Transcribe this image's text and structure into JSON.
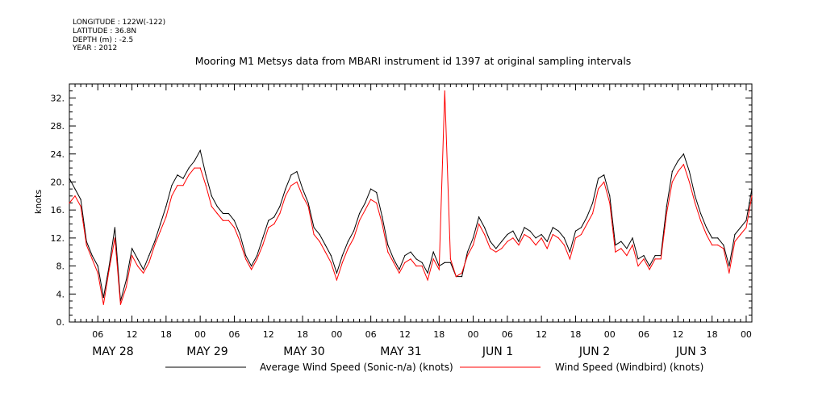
{
  "header": {
    "meta_lines": [
      "LONGITUDE : 122W(-122)",
      "LATITUDE : 36.8N",
      "DEPTH (m) : -2.5",
      "YEAR : 2012"
    ]
  },
  "chart_data": {
    "type": "line",
    "title": "Mooring M1 Metsys data from MBARI instrument id 1397 at original sampling intervals",
    "ylabel": "knots",
    "xlabel": "",
    "x_unit": "hours since 2012-05-28 00:00",
    "xlim": [
      1,
      121
    ],
    "ylim": [
      0,
      34
    ],
    "y_ticks": [
      0,
      4,
      8,
      12,
      16,
      20,
      24,
      28,
      32
    ],
    "y_tick_labels": [
      "0.",
      "4.",
      "8.",
      "12.",
      "16.",
      "20.",
      "24.",
      "28.",
      "32."
    ],
    "x_ticks": [
      6,
      12,
      18,
      24,
      30,
      36,
      42,
      48,
      54,
      60,
      66,
      72,
      78,
      84,
      90,
      96,
      102,
      108,
      114,
      120
    ],
    "x_tick_labels": [
      "06",
      "12",
      "18",
      "00",
      "06",
      "12",
      "18",
      "00",
      "06",
      "12",
      "18",
      "00",
      "06",
      "12",
      "18",
      "00",
      "06",
      "12",
      "18",
      "00"
    ],
    "day_labels": [
      {
        "x": 6,
        "label": "MAY 28"
      },
      {
        "x": 30,
        "label": "MAY 29"
      },
      {
        "x": 54,
        "label": "MAY 30"
      },
      {
        "x": 78,
        "label": "MAY 31"
      },
      {
        "x": 102,
        "label": "JUN  1"
      },
      {
        "x": 126,
        "label": "JUN  2"
      },
      {
        "x": 150,
        "label": "JUN  3"
      }
    ],
    "grid": false,
    "legend": "bottom",
    "series": [
      {
        "name": "Average Wind Speed (Sonic-n/a) (knots)",
        "color": "#000000",
        "x": [
          1,
          2,
          3,
          4,
          5,
          6,
          7,
          8,
          9,
          10,
          11,
          12,
          13,
          14,
          15,
          16,
          17,
          18,
          19,
          20,
          21,
          22,
          23,
          24,
          25,
          26,
          27,
          28,
          29,
          30,
          31,
          32,
          33,
          34,
          35,
          36,
          37,
          38,
          39,
          40,
          41,
          42,
          43,
          44,
          45,
          46,
          47,
          48,
          49,
          50,
          51,
          52,
          53,
          54,
          55,
          56,
          57,
          58,
          59,
          60,
          61,
          62,
          63,
          64,
          65,
          66,
          67,
          68,
          69,
          70,
          71,
          72,
          73,
          74,
          75,
          76,
          77,
          78,
          79,
          80,
          81,
          82,
          83,
          84,
          85,
          86,
          87,
          88,
          89,
          90,
          91,
          92,
          93,
          94,
          95,
          96,
          97,
          98,
          99,
          100,
          101,
          102,
          103,
          104,
          105,
          106,
          107,
          108,
          109,
          110,
          111,
          112,
          113,
          114,
          115,
          116,
          117,
          118,
          119,
          120,
          121
        ],
        "values": [
          20.5,
          19.0,
          17.5,
          11.5,
          9.5,
          8.0,
          3.5,
          8.0,
          13.5,
          3.0,
          6.0,
          10.5,
          9.0,
          7.5,
          9.5,
          11.5,
          14.0,
          16.5,
          19.5,
          21.0,
          20.5,
          22.0,
          23.0,
          24.5,
          21.0,
          18.0,
          16.5,
          15.5,
          15.5,
          14.5,
          12.5,
          9.5,
          8.0,
          9.5,
          12.0,
          14.5,
          15.0,
          16.5,
          19.0,
          21.0,
          21.5,
          19.0,
          17.0,
          13.5,
          12.5,
          11.0,
          9.5,
          7.0,
          9.5,
          11.5,
          13.0,
          15.5,
          17.0,
          19.0,
          18.5,
          15.0,
          11.0,
          9.0,
          7.5,
          9.5,
          10.0,
          9.0,
          8.5,
          7.0,
          10.0,
          8.0,
          8.5,
          8.5,
          6.5,
          6.5,
          10.0,
          12.0,
          15.0,
          13.5,
          11.5,
          10.5,
          11.5,
          12.5,
          13.0,
          11.5,
          13.5,
          13.0,
          12.0,
          12.5,
          11.5,
          13.5,
          13.0,
          12.0,
          10.0,
          13.0,
          13.5,
          15.0,
          17.0,
          20.5,
          21.0,
          18.0,
          11.0,
          11.5,
          10.5,
          12.0,
          9.0,
          9.5,
          8.0,
          9.5,
          9.5,
          16.5,
          21.5,
          23.0,
          24.0,
          21.5,
          18.0,
          15.5,
          13.5,
          12.0,
          12.0,
          11.0,
          8.0,
          12.5,
          13.5,
          14.5,
          19.0
        ]
      },
      {
        "name": "Wind Speed (Windbird) (knots)",
        "color": "#ff0000",
        "x": [
          1,
          2,
          3,
          4,
          5,
          6,
          7,
          8,
          9,
          10,
          11,
          12,
          13,
          14,
          15,
          16,
          17,
          18,
          19,
          20,
          21,
          22,
          23,
          24,
          25,
          26,
          27,
          28,
          29,
          30,
          31,
          32,
          33,
          34,
          35,
          36,
          37,
          38,
          39,
          40,
          41,
          42,
          43,
          44,
          45,
          46,
          47,
          48,
          49,
          50,
          51,
          52,
          53,
          54,
          55,
          56,
          57,
          58,
          59,
          60,
          61,
          62,
          63,
          64,
          65,
          66,
          67,
          68,
          69,
          70,
          71,
          72,
          73,
          74,
          75,
          76,
          77,
          78,
          79,
          80,
          81,
          82,
          83,
          84,
          85,
          86,
          87,
          88,
          89,
          90,
          91,
          92,
          93,
          94,
          95,
          96,
          97,
          98,
          99,
          100,
          101,
          102,
          103,
          104,
          105,
          106,
          107,
          108,
          109,
          110,
          111,
          112,
          113,
          114,
          115,
          116,
          117,
          118,
          119,
          120,
          121
        ],
        "values": [
          17.0,
          18.0,
          16.5,
          11.0,
          9.0,
          7.0,
          2.5,
          7.5,
          12.0,
          2.5,
          5.0,
          9.5,
          8.0,
          7.0,
          8.5,
          11.0,
          13.0,
          15.0,
          18.0,
          19.5,
          19.5,
          21.0,
          22.0,
          22.0,
          19.5,
          16.5,
          15.5,
          14.5,
          14.5,
          13.5,
          11.5,
          9.0,
          7.5,
          9.0,
          11.0,
          13.5,
          14.0,
          15.5,
          18.0,
          19.5,
          20.0,
          18.0,
          16.5,
          12.5,
          11.5,
          10.0,
          8.5,
          6.0,
          8.5,
          10.5,
          12.0,
          14.5,
          16.0,
          17.5,
          17.0,
          14.0,
          10.0,
          8.5,
          7.0,
          8.5,
          9.0,
          8.0,
          8.0,
          6.0,
          9.0,
          7.5,
          33.0,
          9.0,
          6.5,
          7.0,
          9.5,
          11.0,
          14.0,
          12.5,
          10.5,
          10.0,
          10.5,
          11.5,
          12.0,
          11.0,
          12.5,
          12.0,
          11.0,
          12.0,
          10.5,
          12.5,
          12.0,
          11.0,
          9.0,
          12.0,
          12.5,
          14.0,
          15.5,
          19.0,
          20.0,
          17.0,
          10.0,
          10.5,
          9.5,
          11.0,
          8.0,
          9.0,
          7.5,
          9.0,
          9.0,
          15.5,
          20.0,
          21.5,
          22.5,
          20.0,
          17.0,
          14.5,
          12.5,
          11.0,
          11.0,
          10.5,
          7.0,
          11.5,
          12.5,
          13.5,
          18.0
        ]
      }
    ]
  }
}
